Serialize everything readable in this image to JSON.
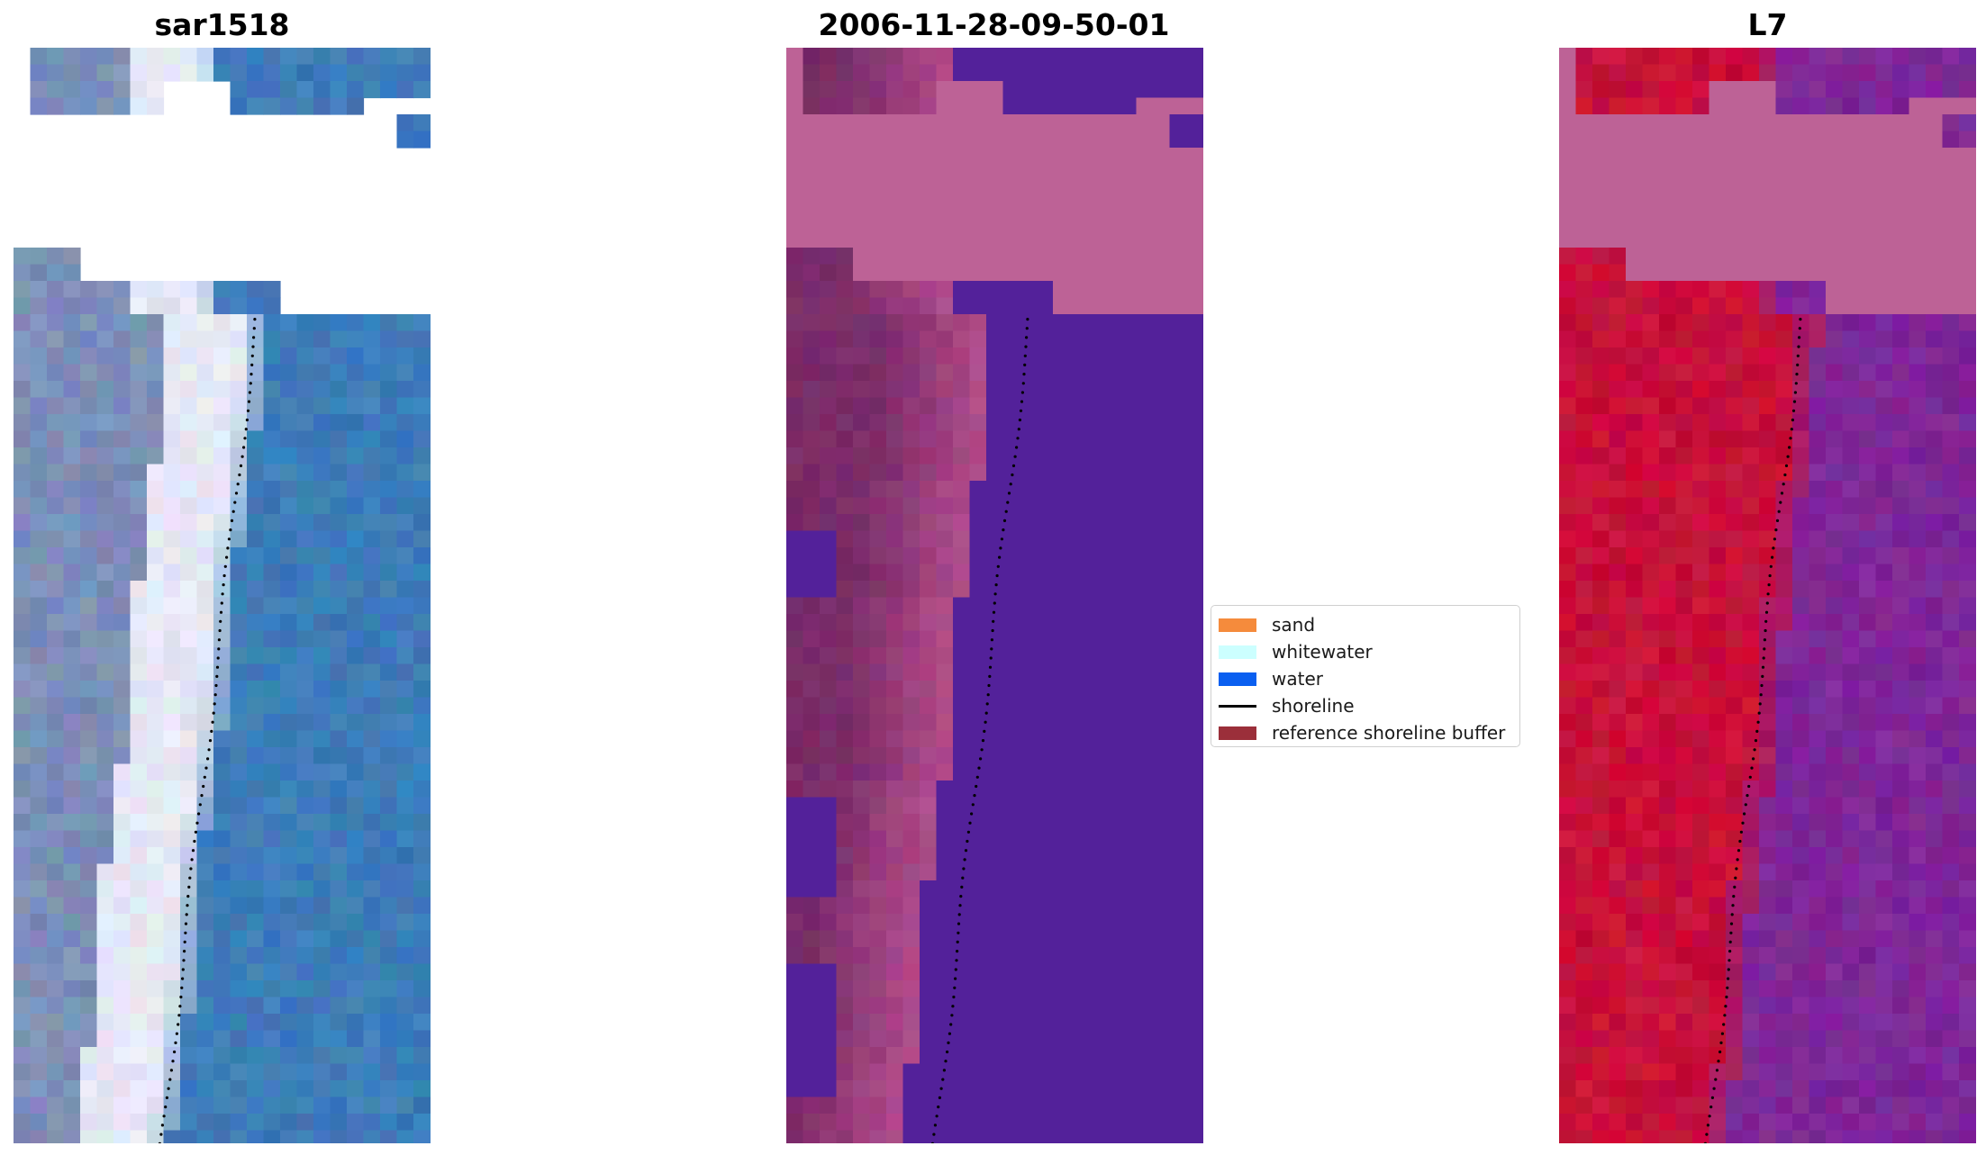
{
  "panels": [
    {
      "title": "sar1518",
      "style": "rgb-true-color"
    },
    {
      "title": "2006-11-28-09-50-01",
      "style": "classified-overlay"
    },
    {
      "title": "L7",
      "style": "false-color"
    }
  ],
  "legend": {
    "items": [
      {
        "label": "sand",
        "color": "#f58b3c",
        "kind": "patch"
      },
      {
        "label": "whitewater",
        "color": "#ccffff",
        "kind": "patch"
      },
      {
        "label": "water",
        "color": "#0a5ff0",
        "kind": "patch"
      },
      {
        "label": "shoreline",
        "color": "#000000",
        "kind": "line"
      },
      {
        "label": "reference shoreline buffer",
        "color": "#9b2f3a",
        "kind": "patch"
      }
    ]
  },
  "colors": {
    "ocean_rgb": "#3d7cb9",
    "sand_rgb": "#e6e8f5",
    "land_rgb": "#7c8fb8",
    "class_land": "#7a2c68",
    "class_beach": "#b75090",
    "class_mask": "#bd6296",
    "class_water": "#53219a",
    "false_red": "#c8103a",
    "false_purple": "#7e2698",
    "false_mask": "#bd6296"
  }
}
